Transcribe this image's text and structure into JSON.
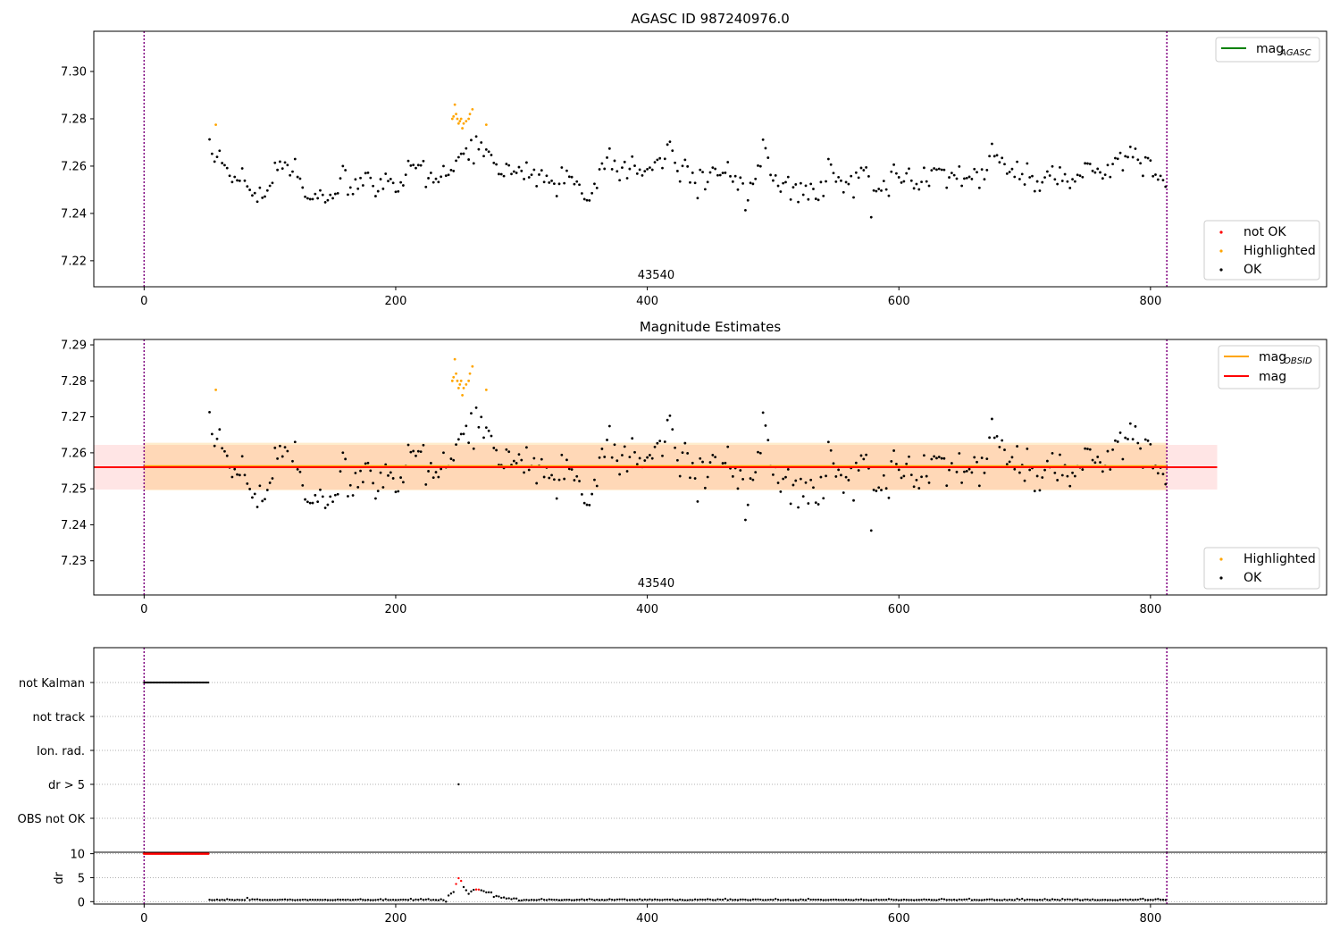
{
  "chart_data": [
    {
      "type": "scatter",
      "title": "AGASC ID 987240976.0",
      "xlim": [
        -40,
        940
      ],
      "ylim": [
        7.209,
        7.317
      ],
      "yticks": [
        7.22,
        7.24,
        7.26,
        7.28,
        7.3
      ],
      "xticks": [
        0,
        200,
        400,
        600,
        800
      ],
      "obsid_label": "43540",
      "obsid_label_x": 407,
      "vlines": [
        0,
        813
      ],
      "legend_upper": [
        {
          "label_main": "mag",
          "label_sub": "AGASC",
          "color": "#008000",
          "kind": "line"
        }
      ],
      "legend_lower": [
        {
          "label": "not OK",
          "color": "#ff0000"
        },
        {
          "label": "Highlighted",
          "color": "#ffa500"
        },
        {
          "label": "OK",
          "color": "#000000"
        }
      ],
      "series": [
        {
          "name": "OK",
          "color": "#000000",
          "x_start": 52,
          "x_end": 813,
          "x_step": 2,
          "anchors": [
            [
              52,
              7.26
            ],
            [
              60,
              7.266
            ],
            [
              70,
              7.255
            ],
            [
              80,
              7.256
            ],
            [
              95,
              7.248
            ],
            [
              108,
              7.259
            ],
            [
              125,
              7.253
            ],
            [
              140,
              7.246
            ],
            [
              160,
              7.25
            ],
            [
              190,
              7.253
            ],
            [
              210,
              7.252
            ],
            [
              222,
              7.26
            ],
            [
              235,
              7.254
            ],
            [
              244,
              7.255
            ],
            [
              256,
              7.266
            ],
            [
              270,
              7.263
            ],
            [
              285,
              7.256
            ],
            [
              300,
              7.262
            ],
            [
              320,
              7.253
            ],
            [
              340,
              7.255
            ],
            [
              355,
              7.252
            ],
            [
              370,
              7.261
            ],
            [
              400,
              7.259
            ],
            [
              420,
              7.264
            ],
            [
              440,
              7.257
            ],
            [
              460,
              7.255
            ],
            [
              480,
              7.256
            ],
            [
              495,
              7.264
            ],
            [
              510,
              7.252
            ],
            [
              530,
              7.247
            ],
            [
              545,
              7.257
            ],
            [
              560,
              7.253
            ],
            [
              590,
              7.254
            ],
            [
              620,
              7.26
            ],
            [
              640,
              7.255
            ],
            [
              660,
              7.255
            ],
            [
              675,
              7.262
            ],
            [
              700,
              7.253
            ],
            [
              720,
              7.258
            ],
            [
              735,
              7.253
            ],
            [
              750,
              7.26
            ],
            [
              760,
              7.254
            ],
            [
              770,
              7.265
            ],
            [
              790,
              7.262
            ],
            [
              800,
              7.258
            ],
            [
              813,
              7.256
            ]
          ],
          "noise": 0.0045
        },
        {
          "name": "Highlighted",
          "color": "#ffa500",
          "x": [
            57,
            245,
            246,
            247,
            248,
            249,
            250,
            251,
            252,
            253,
            254,
            256,
            258,
            259,
            261,
            272
          ],
          "y": [
            7.2775,
            7.28,
            7.281,
            7.286,
            7.282,
            7.28,
            7.278,
            7.279,
            7.28,
            7.276,
            7.278,
            7.279,
            7.28,
            7.282,
            7.284,
            7.2775
          ]
        }
      ]
    },
    {
      "type": "scatter",
      "title": "Magnitude Estimates",
      "xlim": [
        -40,
        940
      ],
      "ylim": [
        7.2205,
        7.2915
      ],
      "yticks": [
        7.23,
        7.24,
        7.25,
        7.26,
        7.27,
        7.28,
        7.29
      ],
      "xticks": [
        0,
        200,
        400,
        600,
        800
      ],
      "obsid_label": "43540",
      "obsid_label_x": 407,
      "vlines": [
        0,
        813
      ],
      "mag": 7.256,
      "mag_band": [
        7.2498,
        7.2622
      ],
      "mag_band_x": [
        -40,
        853
      ],
      "mag_obsid": 7.2563,
      "obsid_band": [
        7.2496,
        7.2628
      ],
      "obsid_band_x": [
        0,
        813
      ],
      "legend_upper": [
        {
          "label_main": "mag",
          "label_sub": "OBSID",
          "color": "#ffa500",
          "kind": "line"
        },
        {
          "label_main": "mag",
          "label_sub": "",
          "color": "#ff0000",
          "kind": "line"
        }
      ],
      "legend_lower": [
        {
          "label": "Highlighted",
          "color": "#ffa500"
        },
        {
          "label": "OK",
          "color": "#000000"
        }
      ]
    },
    {
      "type": "scatter",
      "title": "",
      "xlim": [
        -40,
        940
      ],
      "flags": [
        "not Kalman",
        "not track",
        "Ion. rad.",
        "dr > 5",
        "OBS not OK"
      ],
      "not_kalman_x": [
        0,
        51
      ],
      "dr_gt5_x": [
        250
      ],
      "xticks": [
        0,
        200,
        400,
        600,
        800
      ],
      "vlines": [
        0,
        813
      ]
    },
    {
      "type": "scatter",
      "title": "",
      "ylabel": "dr",
      "xlim": [
        -40,
        940
      ],
      "ylim": [
        -0.5,
        10.3
      ],
      "yticks": [
        0,
        5,
        10
      ],
      "xticks": [
        0,
        200,
        400,
        600,
        800
      ],
      "vlines": [
        0,
        813
      ],
      "saturated_x": [
        0,
        51
      ],
      "saturated_y": 10,
      "baseline_x": [
        52,
        813
      ],
      "baseline_y": 0.3,
      "bump": [
        [
          240,
          0.3
        ],
        [
          246,
          2.2
        ],
        [
          250,
          5.0
        ],
        [
          254,
          3.2
        ],
        [
          258,
          1.5
        ],
        [
          262,
          2.5
        ],
        [
          268,
          2.3
        ],
        [
          275,
          1.8
        ],
        [
          282,
          1.0
        ],
        [
          290,
          0.7
        ],
        [
          300,
          0.3
        ]
      ],
      "red_x": [
        248,
        249,
        250,
        251,
        252,
        264,
        266
      ]
    }
  ]
}
